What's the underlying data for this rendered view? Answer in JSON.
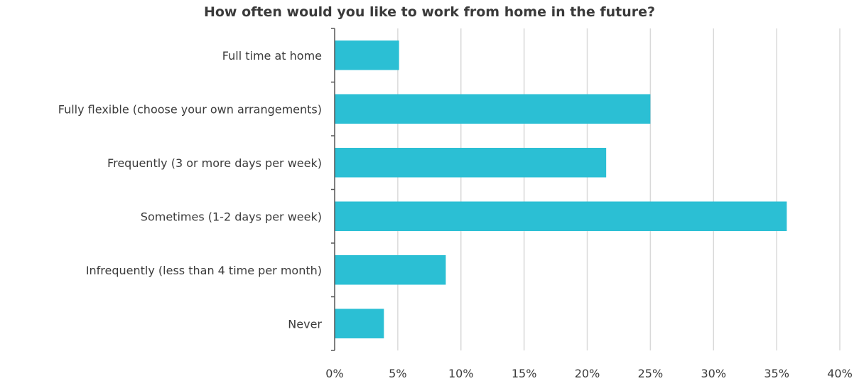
{
  "chart_data": {
    "type": "bar",
    "orientation": "horizontal",
    "title": "How often would you like to work from home in the future?",
    "categories": [
      "Full time at home",
      "Fully flexible (choose your own arrangements)",
      "Frequently (3 or more days per week)",
      "Sometimes (1-2 days per week)",
      "Infrequently (less than 4 time per month)",
      "Never"
    ],
    "values": [
      5.1,
      25.0,
      21.5,
      35.8,
      8.8,
      3.9
    ],
    "unit": "%",
    "xlim": [
      0,
      40
    ],
    "xticks": [
      "0%",
      "5%",
      "10%",
      "15%",
      "20%",
      "25%",
      "30%",
      "35%",
      "40%"
    ],
    "xlabel": "",
    "ylabel": "",
    "grid": true,
    "bar_color": "#2bbfd4",
    "grid_color": "#d9d9d9"
  }
}
